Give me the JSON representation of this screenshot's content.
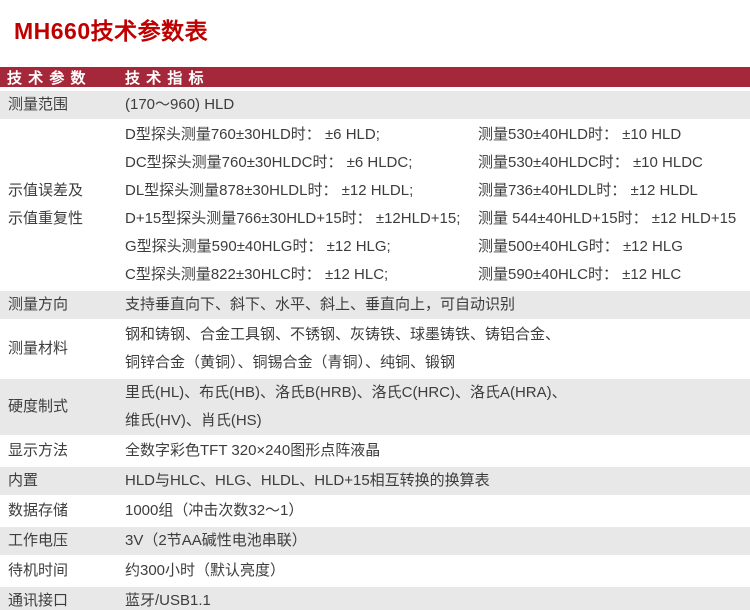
{
  "page": {
    "title": "MH660技术参数表"
  },
  "colors": {
    "title_red": "#c00000",
    "header_bg": "#a5283a",
    "row_gray": "#e8e8e8",
    "row_white": "#ffffff",
    "body_text": "#3d3d3d"
  },
  "table": {
    "header": {
      "param_col": "技 术 参 数",
      "value_col": "技 术 指 标"
    },
    "rows": [
      {
        "label": "测量范围",
        "line1": "(170～960) HLD"
      },
      {
        "label_line1": "示值误差及",
        "label_line2": "示值重复性",
        "pairs": [
          {
            "left": "D型探头测量760±30HLD时： ±6 HLD;",
            "right": "测量530±40HLD时： ±10 HLD"
          },
          {
            "left": "DC型探头测量760±30HLDC时： ±6 HLDC;",
            "right": "测量530±40HLDC时： ±10 HLDC"
          },
          {
            "left": "DL型探头测量878±30HLDL时： ±12 HLDL;",
            "right": "测量736±40HLDL时： ±12 HLDL"
          },
          {
            "left": "D+15型探头测量766±30HLD+15时： ±12HLD+15;",
            "right": "测量 544±40HLD+15时： ±12 HLD+15"
          },
          {
            "left": "G型探头测量590±40HLG时： ±12 HLG;",
            "right": "测量500±40HLG时： ±12 HLG"
          },
          {
            "left": "C型探头测量822±30HLC时： ±12 HLC;",
            "right": "测量590±40HLC时： ±12 HLC"
          }
        ]
      },
      {
        "label": "测量方向",
        "line1": "支持垂直向下、斜下、水平、斜上、垂直向上，可自动识别"
      },
      {
        "label": "测量材料",
        "line1": "钢和铸钢、合金工具钢、不锈钢、灰铸铁、球墨铸铁、铸铝合金、",
        "line2": "铜锌合金（黄铜）、铜锡合金（青铜）、纯铜、锻钢"
      },
      {
        "label": "硬度制式",
        "line1": "里氏(HL)、布氏(HB)、洛氏B(HRB)、洛氏C(HRC)、洛氏A(HRA)、",
        "line2": "维氏(HV)、肖氏(HS)"
      },
      {
        "label": "显示方法",
        "line1": "全数字彩色TFT 320×240图形点阵液晶"
      },
      {
        "label": "内置",
        "line1": "HLD与HLC、HLG、HLDL、HLD+15相互转换的换算表"
      },
      {
        "label": "数据存储",
        "line1": "1000组（冲击次数32～1）"
      },
      {
        "label": "工作电压",
        "line1": "3V（2节AA碱性电池串联）"
      },
      {
        "label": "待机时间",
        "line1": "约300小时（默认亮度）"
      },
      {
        "label": "通讯接口",
        "line1": "蓝牙/USB1.1"
      }
    ]
  }
}
